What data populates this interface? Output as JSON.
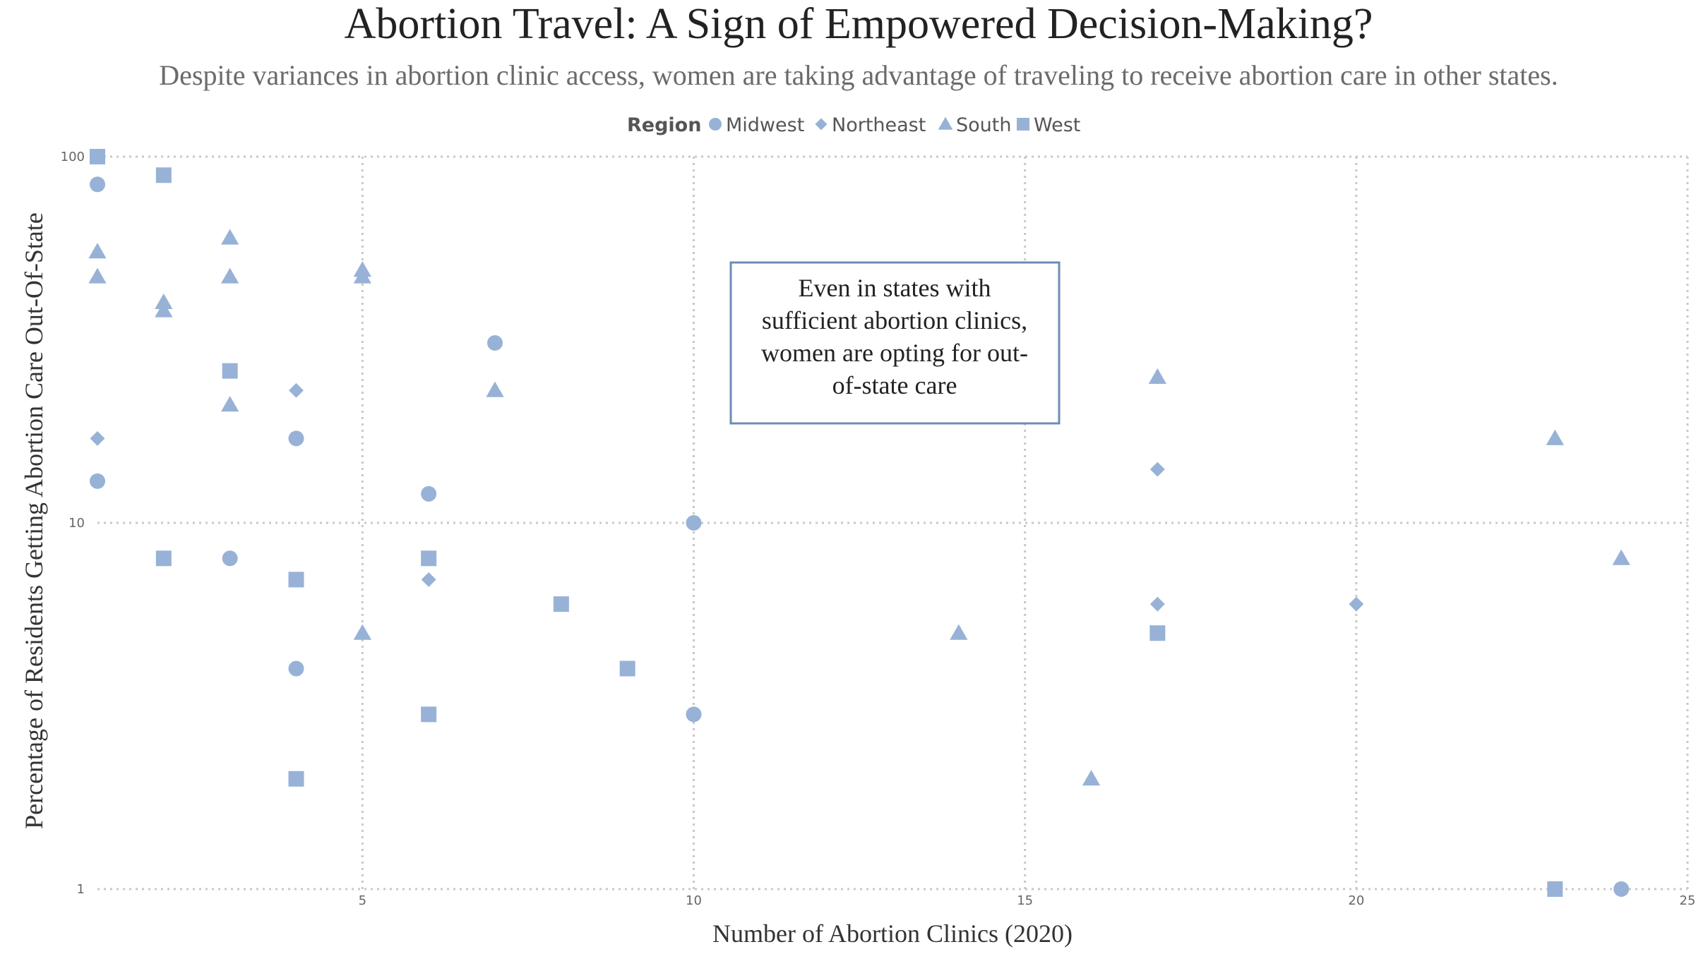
{
  "chart_data": {
    "type": "scatter",
    "title": "Abortion Travel: A Sign of Empowered Decision-Making?",
    "subtitle": "Despite variances in abortion clinic access, women are taking advantage of traveling to receive abortion care in other states.",
    "xlabel": "Number of Abortion Clinics (2020)",
    "ylabel": "Percentage of Residents Getting Abortion Care Out-Of-State",
    "xlim": [
      1,
      25
    ],
    "ylim": [
      1,
      100
    ],
    "yscale": "log",
    "xticks": [
      5,
      10,
      15,
      20,
      25
    ],
    "yticks": [
      1,
      10,
      100
    ],
    "grid": true,
    "point_color": "#97b2d6",
    "legend": {
      "title": "Region",
      "placement": "top-center",
      "entries": [
        {
          "name": "Midwest",
          "marker": "circle"
        },
        {
          "name": "Northeast",
          "marker": "diamond"
        },
        {
          "name": "South",
          "marker": "triangle"
        },
        {
          "name": "West",
          "marker": "square"
        }
      ]
    },
    "annotation": {
      "lines": [
        "Even in states with",
        "sufficient abortion clinics,",
        "women are opting for out-",
        "of-state care"
      ],
      "border_color": "#6b8cb5"
    },
    "series": [
      {
        "name": "Midwest",
        "marker": "circle",
        "points": [
          [
            1,
            84
          ],
          [
            1,
            13
          ],
          [
            3,
            8
          ],
          [
            4,
            17
          ],
          [
            4,
            4
          ],
          [
            6,
            12
          ],
          [
            7,
            31
          ],
          [
            10,
            10
          ],
          [
            10,
            3
          ],
          [
            24,
            1
          ]
        ]
      },
      {
        "name": "Northeast",
        "marker": "diamond",
        "points": [
          [
            1,
            17
          ],
          [
            4,
            23
          ],
          [
            6,
            7
          ],
          [
            17,
            14
          ],
          [
            17,
            6
          ],
          [
            20,
            6
          ]
        ]
      },
      {
        "name": "South",
        "marker": "triangle",
        "points": [
          [
            1,
            55
          ],
          [
            1,
            47
          ],
          [
            2,
            40
          ],
          [
            2,
            38
          ],
          [
            3,
            60
          ],
          [
            3,
            47
          ],
          [
            3,
            21
          ],
          [
            5,
            49
          ],
          [
            5,
            47
          ],
          [
            5,
            5
          ],
          [
            7,
            23
          ],
          [
            14,
            5
          ],
          [
            16,
            2
          ],
          [
            17,
            25
          ],
          [
            23,
            17
          ],
          [
            24,
            8
          ]
        ]
      },
      {
        "name": "West",
        "marker": "square",
        "points": [
          [
            1,
            100
          ],
          [
            2,
            89
          ],
          [
            2,
            8
          ],
          [
            3,
            26
          ],
          [
            4,
            7
          ],
          [
            4,
            2
          ],
          [
            6,
            8
          ],
          [
            6,
            3
          ],
          [
            8,
            6
          ],
          [
            9,
            4
          ],
          [
            17,
            5
          ],
          [
            23,
            1
          ]
        ]
      }
    ]
  }
}
